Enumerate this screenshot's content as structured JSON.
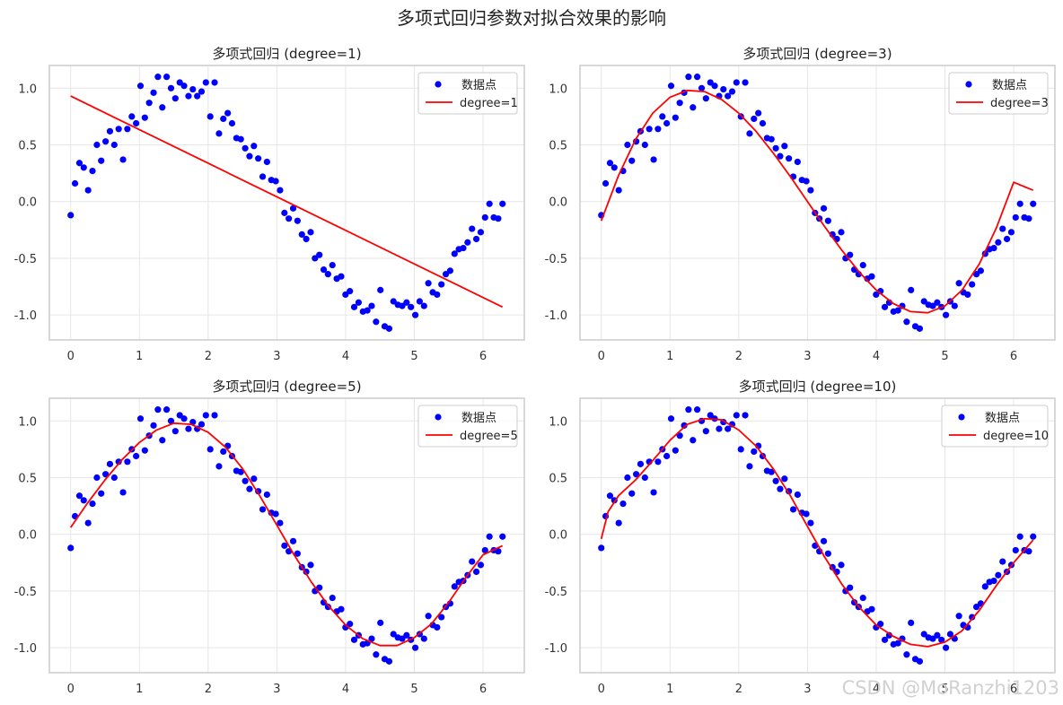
{
  "figure": {
    "suptitle": "多项式回归参数对拟合效果的影响",
    "watermark": "CSDN @MoRanzhi1203"
  },
  "colors": {
    "points": "#0000ff",
    "fit": "#ff0000",
    "grid": "#e6e6e6",
    "spine": "#cccccc"
  },
  "chart_data": [
    {
      "type": "scatter",
      "title": "多项式回归 (degree=1)",
      "degree": 1,
      "xlim": [
        -0.31,
        6.6
      ],
      "ylim": [
        -1.22,
        1.2
      ],
      "xticks": [
        0,
        1,
        2,
        3,
        4,
        5,
        6
      ],
      "yticks": [
        -1.0,
        -0.5,
        0.0,
        0.5,
        1.0
      ],
      "grid": true,
      "legend_position": "top-right",
      "legend": [
        "数据点",
        "degree=1"
      ],
      "series": [
        {
          "name": "数据点",
          "kind": "scatter",
          "x": [
            0.0,
            0.063,
            0.127,
            0.19,
            0.254,
            0.317,
            0.381,
            0.444,
            0.508,
            0.571,
            0.635,
            0.698,
            0.762,
            0.825,
            0.889,
            0.952,
            1.016,
            1.079,
            1.142,
            1.206,
            1.269,
            1.333,
            1.396,
            1.46,
            1.523,
            1.587,
            1.65,
            1.714,
            1.777,
            1.841,
            1.904,
            1.967,
            2.031,
            2.094,
            2.158,
            2.221,
            2.285,
            2.348,
            2.412,
            2.475,
            2.539,
            2.602,
            2.666,
            2.729,
            2.793,
            2.856,
            2.919,
            2.983,
            3.046,
            3.11,
            3.173,
            3.237,
            3.3,
            3.364,
            3.427,
            3.491,
            3.554,
            3.618,
            3.681,
            3.744,
            3.808,
            3.871,
            3.935,
            3.998,
            4.062,
            4.125,
            4.189,
            4.252,
            4.316,
            4.379,
            4.443,
            4.506,
            4.569,
            4.633,
            4.696,
            4.76,
            4.823,
            4.887,
            4.95,
            5.014,
            5.077,
            5.141,
            5.204,
            5.268,
            5.331,
            5.394,
            5.458,
            5.521,
            5.585,
            5.648,
            5.712,
            5.775,
            5.839,
            5.902,
            5.966,
            6.029,
            6.093,
            6.156,
            6.22,
            6.283
          ],
          "y": [
            -0.12,
            0.16,
            0.34,
            0.3,
            0.1,
            0.27,
            0.5,
            0.36,
            0.53,
            0.62,
            0.5,
            0.64,
            0.37,
            0.64,
            0.75,
            0.69,
            1.02,
            0.74,
            0.87,
            0.96,
            1.1,
            0.83,
            1.1,
            1.0,
            0.91,
            1.05,
            1.02,
            0.93,
            0.99,
            0.93,
            0.97,
            1.05,
            0.75,
            1.05,
            0.6,
            0.73,
            0.78,
            0.69,
            0.56,
            0.55,
            0.47,
            0.4,
            0.49,
            0.38,
            0.22,
            0.35,
            0.19,
            0.18,
            0.1,
            -0.1,
            -0.15,
            -0.06,
            -0.17,
            -0.29,
            -0.33,
            -0.27,
            -0.5,
            -0.47,
            -0.6,
            -0.64,
            -0.56,
            -0.68,
            -0.66,
            -0.82,
            -0.79,
            -0.93,
            -0.89,
            -0.97,
            -0.96,
            -0.92,
            -1.06,
            -0.78,
            -1.1,
            -1.12,
            -0.88,
            -0.91,
            -0.92,
            -0.89,
            -0.93,
            -1.0,
            -0.88,
            -0.92,
            -0.72,
            -0.8,
            -0.82,
            -0.73,
            -0.64,
            -0.61,
            -0.46,
            -0.42,
            -0.41,
            -0.36,
            -0.24,
            -0.33,
            -0.27,
            -0.14,
            -0.02,
            -0.14,
            -0.15,
            -0.02
          ]
        },
        {
          "name": "degree=1",
          "kind": "line",
          "x": [
            0,
            6.283
          ],
          "y": [
            0.93,
            -0.93
          ]
        }
      ]
    },
    {
      "type": "scatter",
      "title": "多项式回归 (degree=3)",
      "degree": 3,
      "xlim": [
        -0.31,
        6.6
      ],
      "ylim": [
        -1.22,
        1.2
      ],
      "xticks": [
        0,
        1,
        2,
        3,
        4,
        5,
        6
      ],
      "yticks": [
        -1.0,
        -0.5,
        0.0,
        0.5,
        1.0
      ],
      "grid": true,
      "legend_position": "top-right",
      "legend": [
        "数据点",
        "degree=3"
      ],
      "series": [
        {
          "name": "数据点",
          "kind": "scatter",
          "same_as_panel": 0
        },
        {
          "name": "degree=3",
          "kind": "line",
          "x": [
            0.0,
            0.25,
            0.5,
            0.75,
            1.0,
            1.25,
            1.5,
            1.75,
            2.0,
            2.25,
            2.5,
            2.75,
            3.0,
            3.25,
            3.5,
            3.75,
            4.0,
            4.25,
            4.5,
            4.75,
            5.0,
            5.25,
            5.5,
            5.75,
            6.0,
            6.283
          ],
          "y": [
            -0.17,
            0.23,
            0.55,
            0.78,
            0.92,
            0.98,
            0.97,
            0.9,
            0.78,
            0.62,
            0.43,
            0.22,
            0.0,
            -0.22,
            -0.43,
            -0.62,
            -0.78,
            -0.9,
            -0.97,
            -0.98,
            -0.92,
            -0.78,
            -0.55,
            -0.23,
            0.17,
            0.1
          ]
        }
      ]
    },
    {
      "type": "scatter",
      "title": "多项式回归 (degree=5)",
      "degree": 5,
      "xlim": [
        -0.31,
        6.6
      ],
      "ylim": [
        -1.22,
        1.2
      ],
      "xticks": [
        0,
        1,
        2,
        3,
        4,
        5,
        6
      ],
      "yticks": [
        -1.0,
        -0.5,
        0.0,
        0.5,
        1.0
      ],
      "grid": true,
      "legend_position": "top-right",
      "legend": [
        "数据点",
        "degree=5"
      ],
      "series": [
        {
          "name": "数据点",
          "kind": "scatter",
          "same_as_panel": 0
        },
        {
          "name": "degree=5",
          "kind": "line",
          "x": [
            0.0,
            0.25,
            0.5,
            0.75,
            1.0,
            1.25,
            1.5,
            1.75,
            2.0,
            2.25,
            2.5,
            2.75,
            3.0,
            3.25,
            3.5,
            3.75,
            4.0,
            4.25,
            4.5,
            4.75,
            5.0,
            5.25,
            5.5,
            5.75,
            6.0,
            6.283
          ],
          "y": [
            0.06,
            0.28,
            0.48,
            0.66,
            0.81,
            0.92,
            0.98,
            0.97,
            0.9,
            0.77,
            0.58,
            0.34,
            0.08,
            -0.18,
            -0.42,
            -0.63,
            -0.8,
            -0.92,
            -0.98,
            -0.98,
            -0.91,
            -0.79,
            -0.6,
            -0.38,
            -0.18,
            -0.1
          ]
        }
      ]
    },
    {
      "type": "scatter",
      "title": "多项式回归 (degree=10)",
      "degree": 10,
      "xlim": [
        -0.31,
        6.6
      ],
      "ylim": [
        -1.22,
        1.2
      ],
      "xticks": [
        0,
        1,
        2,
        3,
        4,
        5,
        6
      ],
      "yticks": [
        -1.0,
        -0.5,
        0.0,
        0.5,
        1.0
      ],
      "grid": true,
      "legend_position": "top-right",
      "legend": [
        "数据点",
        "degree=10"
      ],
      "series": [
        {
          "name": "数据点",
          "kind": "scatter",
          "same_as_panel": 0
        },
        {
          "name": "degree=10",
          "kind": "line",
          "x": [
            0.0,
            0.1,
            0.25,
            0.5,
            0.75,
            1.0,
            1.25,
            1.5,
            1.75,
            2.0,
            2.25,
            2.5,
            2.75,
            3.0,
            3.25,
            3.5,
            3.75,
            4.0,
            4.25,
            4.5,
            4.75,
            5.0,
            5.25,
            5.5,
            5.75,
            6.0,
            6.283
          ],
          "y": [
            -0.04,
            0.2,
            0.34,
            0.48,
            0.65,
            0.83,
            0.97,
            1.02,
            1.01,
            0.92,
            0.78,
            0.58,
            0.34,
            0.07,
            -0.2,
            -0.44,
            -0.64,
            -0.8,
            -0.9,
            -0.97,
            -0.99,
            -0.95,
            -0.85,
            -0.67,
            -0.45,
            -0.25,
            -0.05
          ]
        }
      ]
    }
  ]
}
